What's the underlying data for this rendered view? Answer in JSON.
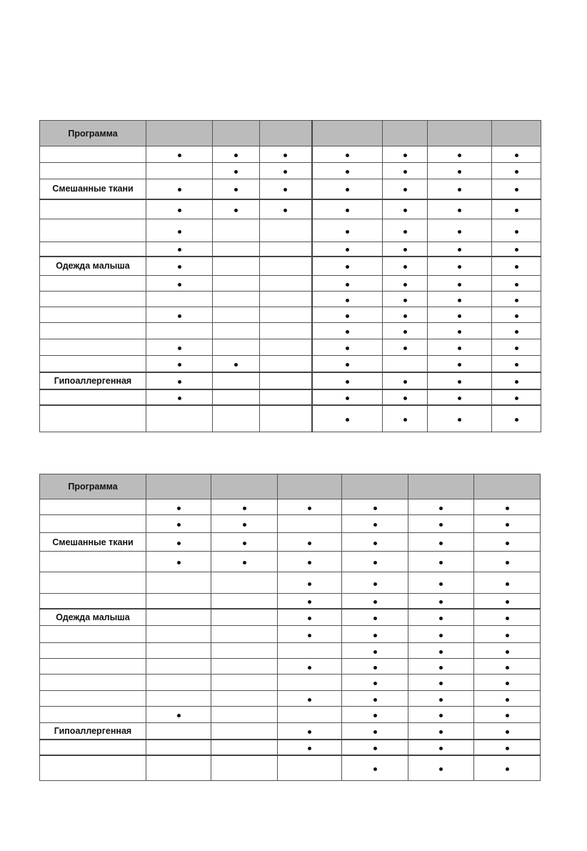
{
  "tables": [
    {
      "header": {
        "first_column": "Программа"
      },
      "column_count": 7,
      "rows": [
        {
          "label": "",
          "marks": [
            1,
            1,
            1,
            1,
            1,
            1,
            1
          ]
        },
        {
          "label": "",
          "marks": [
            0,
            1,
            1,
            1,
            1,
            1,
            1
          ]
        },
        {
          "label": "Смешанные ткани",
          "marks": [
            1,
            1,
            1,
            1,
            1,
            1,
            1
          ]
        },
        {
          "label": "",
          "marks": [
            1,
            1,
            1,
            1,
            1,
            1,
            1
          ]
        },
        {
          "label": "",
          "marks": [
            1,
            0,
            0,
            1,
            1,
            1,
            1
          ]
        },
        {
          "label": "",
          "marks": [
            1,
            0,
            0,
            1,
            1,
            1,
            1
          ]
        },
        {
          "label": "Одежда малыша",
          "marks": [
            1,
            0,
            0,
            1,
            1,
            1,
            1
          ]
        },
        {
          "label": "",
          "marks": [
            1,
            0,
            0,
            1,
            1,
            1,
            1
          ]
        },
        {
          "label": "",
          "marks": [
            0,
            0,
            0,
            1,
            1,
            1,
            1
          ]
        },
        {
          "label": "",
          "marks": [
            1,
            0,
            0,
            1,
            1,
            1,
            1
          ]
        },
        {
          "label": "",
          "marks": [
            0,
            0,
            0,
            1,
            1,
            1,
            1
          ]
        },
        {
          "label": "",
          "marks": [
            1,
            0,
            0,
            1,
            1,
            1,
            1
          ]
        },
        {
          "label": "",
          "marks": [
            1,
            1,
            0,
            1,
            0,
            1,
            1
          ]
        },
        {
          "label": "Гипоаллергенная",
          "marks": [
            1,
            0,
            0,
            1,
            1,
            1,
            1
          ]
        },
        {
          "label": "",
          "marks": [
            1,
            0,
            0,
            1,
            1,
            1,
            1
          ]
        },
        {
          "label": "",
          "marks": [
            0,
            0,
            0,
            1,
            1,
            1,
            1
          ]
        }
      ]
    },
    {
      "header": {
        "first_column": "Программа"
      },
      "column_count": 6,
      "rows": [
        {
          "label": "",
          "marks": [
            1,
            1,
            1,
            1,
            1,
            1
          ]
        },
        {
          "label": "",
          "marks": [
            1,
            1,
            0,
            1,
            1,
            1
          ]
        },
        {
          "label": "Смешанные ткани",
          "marks": [
            1,
            1,
            1,
            1,
            1,
            1
          ]
        },
        {
          "label": "",
          "marks": [
            1,
            1,
            1,
            1,
            1,
            1
          ]
        },
        {
          "label": "",
          "marks": [
            0,
            0,
            1,
            1,
            1,
            1
          ]
        },
        {
          "label": "",
          "marks": [
            0,
            0,
            1,
            1,
            1,
            1
          ]
        },
        {
          "label": "Одежда малыша",
          "marks": [
            0,
            0,
            1,
            1,
            1,
            1
          ]
        },
        {
          "label": "",
          "marks": [
            0,
            0,
            1,
            1,
            1,
            1
          ]
        },
        {
          "label": "",
          "marks": [
            0,
            0,
            0,
            1,
            1,
            1
          ]
        },
        {
          "label": "",
          "marks": [
            0,
            0,
            1,
            1,
            1,
            1
          ]
        },
        {
          "label": "",
          "marks": [
            0,
            0,
            0,
            1,
            1,
            1
          ]
        },
        {
          "label": "",
          "marks": [
            0,
            0,
            1,
            1,
            1,
            1
          ]
        },
        {
          "label": "",
          "marks": [
            1,
            0,
            0,
            1,
            1,
            1
          ]
        },
        {
          "label": "Гипоаллергенная",
          "marks": [
            0,
            0,
            1,
            1,
            1,
            1
          ]
        },
        {
          "label": "",
          "marks": [
            0,
            0,
            1,
            1,
            1,
            1
          ]
        },
        {
          "label": "",
          "marks": [
            0,
            0,
            0,
            1,
            1,
            1
          ]
        }
      ]
    }
  ]
}
